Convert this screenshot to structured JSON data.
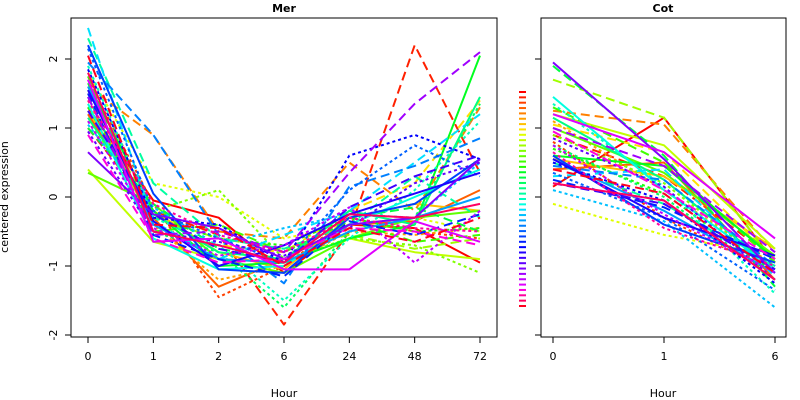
{
  "chart_data": [
    {
      "type": "line",
      "title": "Mer",
      "xlabel": "Hour",
      "ylabel": "centered expression",
      "categories": [
        "0",
        "1",
        "2",
        "6",
        "24",
        "48",
        "72"
      ],
      "ylim": [
        -2,
        2.5
      ],
      "yticks": [
        -2,
        -1,
        0,
        1,
        2
      ],
      "grid": false,
      "series": [
        {
          "color": "#ff0000",
          "dash": "solid",
          "values": [
            1.3,
            -0.05,
            -0.3,
            -1.1,
            -0.4,
            -0.45,
            -0.95
          ]
        },
        {
          "color": "#ff2000",
          "dash": "long",
          "values": [
            1.0,
            -0.2,
            -0.55,
            -1.85,
            -0.5,
            2.2,
            0.35
          ]
        },
        {
          "color": "#ff4000",
          "dash": "short",
          "values": [
            1.7,
            -0.1,
            -1.45,
            -1.0,
            -0.3,
            -0.5,
            -0.6
          ]
        },
        {
          "color": "#ff6000",
          "dash": "solid",
          "values": [
            1.2,
            -0.3,
            -1.3,
            -0.9,
            -0.4,
            -0.35,
            0.1
          ]
        },
        {
          "color": "#ff8000",
          "dash": "long",
          "values": [
            1.6,
            0.9,
            -0.5,
            -0.6,
            0.5,
            -0.2,
            1.3
          ]
        },
        {
          "color": "#ffa000",
          "dash": "short",
          "values": [
            1.4,
            -0.4,
            -1.2,
            -1.0,
            -0.5,
            -0.55,
            -0.45
          ]
        },
        {
          "color": "#ffc000",
          "dash": "solid",
          "values": [
            1.25,
            -0.2,
            -0.8,
            -1.05,
            -0.3,
            -0.1,
            -0.2
          ]
        },
        {
          "color": "#ffe000",
          "dash": "long",
          "values": [
            1.5,
            -0.5,
            -0.7,
            -0.8,
            -0.2,
            0.2,
            1.4
          ]
        },
        {
          "color": "#e0ff00",
          "dash": "short",
          "values": [
            1.8,
            0.2,
            0.0,
            -0.6,
            -0.4,
            -0.3,
            -0.5
          ]
        },
        {
          "color": "#c0ff00",
          "dash": "solid",
          "values": [
            0.4,
            -0.65,
            -0.9,
            -0.95,
            -0.6,
            -0.8,
            -0.9
          ]
        },
        {
          "color": "#a0ff00",
          "dash": "long",
          "values": [
            1.55,
            -0.3,
            -0.6,
            -0.75,
            -0.55,
            -0.75,
            -0.6
          ]
        },
        {
          "color": "#80ff00",
          "dash": "short",
          "values": [
            1.1,
            -0.2,
            0.1,
            -0.9,
            -0.6,
            -0.7,
            -1.1
          ]
        },
        {
          "color": "#60ff00",
          "dash": "solid",
          "values": [
            0.35,
            -0.1,
            -0.9,
            -1.1,
            -0.6,
            -0.3,
            -0.2
          ]
        },
        {
          "color": "#40ff00",
          "dash": "long",
          "values": [
            1.75,
            -0.5,
            -0.4,
            -0.8,
            -0.35,
            -0.65,
            -0.55
          ]
        },
        {
          "color": "#20ff00",
          "dash": "short",
          "values": [
            1.3,
            -0.3,
            -0.6,
            -0.7,
            -0.3,
            -0.5,
            -0.45
          ]
        },
        {
          "color": "#00ff20",
          "dash": "solid",
          "values": [
            1.65,
            -0.2,
            -1.0,
            -0.95,
            -0.6,
            -0.4,
            2.05
          ]
        },
        {
          "color": "#00ff40",
          "dash": "long",
          "values": [
            1.0,
            -0.1,
            -0.75,
            -0.9,
            -0.3,
            -0.15,
            -0.5
          ]
        },
        {
          "color": "#00ff60",
          "dash": "short",
          "values": [
            1.45,
            -0.5,
            -0.8,
            -1.6,
            -0.5,
            -0.3,
            1.35
          ]
        },
        {
          "color": "#00ff80",
          "dash": "solid",
          "values": [
            1.15,
            -0.25,
            -0.8,
            -0.9,
            -0.2,
            -0.4,
            1.45
          ]
        },
        {
          "color": "#00ffa0",
          "dash": "long",
          "values": [
            2.3,
            0.2,
            -0.6,
            -0.75,
            -0.4,
            0.3,
            -0.3
          ]
        },
        {
          "color": "#00ffc0",
          "dash": "short",
          "values": [
            1.9,
            -0.3,
            -0.7,
            -1.5,
            -0.6,
            0.1,
            1.1
          ]
        },
        {
          "color": "#00ffe0",
          "dash": "solid",
          "values": [
            1.35,
            -0.6,
            -1.05,
            -1.0,
            -0.4,
            0.0,
            0.4
          ]
        },
        {
          "color": "#00e0ff",
          "dash": "long",
          "values": [
            2.45,
            -0.35,
            -0.9,
            -0.55,
            -0.2,
            0.5,
            1.2
          ]
        },
        {
          "color": "#00c0ff",
          "dash": "short",
          "values": [
            1.05,
            -0.15,
            -0.7,
            -0.45,
            -0.25,
            -0.3,
            0.5
          ]
        },
        {
          "color": "#00a0ff",
          "dash": "solid",
          "values": [
            1.6,
            -0.4,
            -0.9,
            -0.95,
            -0.5,
            -0.3,
            0.0
          ]
        },
        {
          "color": "#0080ff",
          "dash": "long",
          "values": [
            1.95,
            0.9,
            -0.55,
            -1.25,
            0.15,
            0.45,
            0.85
          ]
        },
        {
          "color": "#0060ff",
          "dash": "short",
          "values": [
            2.15,
            -0.2,
            -0.6,
            -0.95,
            0.1,
            0.75,
            0.3
          ]
        },
        {
          "color": "#0040ff",
          "dash": "solid",
          "values": [
            2.2,
            0.05,
            -1.05,
            -1.1,
            -0.3,
            -0.1,
            0.55
          ]
        },
        {
          "color": "#0020ff",
          "dash": "long",
          "values": [
            1.5,
            -0.55,
            -0.9,
            -1.15,
            -0.35,
            -0.55,
            -0.25
          ]
        },
        {
          "color": "#0000ff",
          "dash": "short",
          "values": [
            1.85,
            -0.3,
            -0.4,
            -0.95,
            0.6,
            0.9,
            0.55
          ]
        },
        {
          "color": "#2000ff",
          "dash": "solid",
          "values": [
            1.55,
            -0.35,
            -1.0,
            -0.7,
            -0.25,
            0.05,
            0.35
          ]
        },
        {
          "color": "#4000ff",
          "dash": "long",
          "values": [
            1.25,
            -0.25,
            -0.75,
            -0.95,
            -0.15,
            0.3,
            0.6
          ]
        },
        {
          "color": "#6000ff",
          "dash": "short",
          "values": [
            0.95,
            -0.5,
            -0.65,
            -0.85,
            -0.45,
            0.2,
            0.5
          ]
        },
        {
          "color": "#8000ff",
          "dash": "solid",
          "values": [
            0.65,
            -0.25,
            -0.45,
            -0.9,
            -0.4,
            -0.3,
            0.55
          ]
        },
        {
          "color": "#a000ff",
          "dash": "long",
          "values": [
            1.45,
            -0.55,
            -0.5,
            -0.8,
            0.35,
            1.35,
            2.1
          ]
        },
        {
          "color": "#c000ff",
          "dash": "short",
          "values": [
            1.1,
            -0.45,
            -0.85,
            -0.7,
            -0.15,
            -0.95,
            -0.2
          ]
        },
        {
          "color": "#e000ff",
          "dash": "solid",
          "values": [
            1.7,
            -0.65,
            -0.6,
            -1.05,
            -1.05,
            -0.35,
            -0.65
          ]
        },
        {
          "color": "#ff00e0",
          "dash": "long",
          "values": [
            0.9,
            -0.6,
            -0.95,
            -0.9,
            -0.45,
            -0.5,
            -0.7
          ]
        },
        {
          "color": "#ff00a0",
          "dash": "short",
          "values": [
            1.4,
            -0.1,
            -0.55,
            -0.8,
            -0.3,
            -0.45,
            -0.5
          ]
        },
        {
          "color": "#ff0060",
          "dash": "solid",
          "values": [
            1.8,
            -0.5,
            -0.7,
            -0.95,
            -0.25,
            -0.3,
            -0.1
          ]
        },
        {
          "color": "#ff0020",
          "dash": "long",
          "values": [
            2.05,
            -0.4,
            -0.45,
            -1.0,
            -0.45,
            -0.65,
            -0.3
          ]
        }
      ]
    },
    {
      "type": "line",
      "title": "Cot",
      "xlabel": "Hour",
      "ylabel": "",
      "categories": [
        "0",
        "1",
        "6"
      ],
      "ylim": [
        -2,
        2.5
      ],
      "yticks": [
        -2,
        -1,
        0,
        1,
        2
      ],
      "grid": false,
      "series": [
        {
          "color": "#ff0000",
          "dash": "solid",
          "values": [
            0.15,
            1.15,
            -0.95
          ]
        },
        {
          "color": "#ff2000",
          "dash": "long",
          "values": [
            0.9,
            0.3,
            -0.9
          ]
        },
        {
          "color": "#ff4000",
          "dash": "short",
          "values": [
            0.8,
            -0.3,
            -1.1
          ]
        },
        {
          "color": "#ff6000",
          "dash": "solid",
          "values": [
            0.4,
            0.5,
            -1.2
          ]
        },
        {
          "color": "#ff8000",
          "dash": "long",
          "values": [
            1.25,
            1.05,
            -0.8
          ]
        },
        {
          "color": "#ffa000",
          "dash": "short",
          "values": [
            1.1,
            0.1,
            -1.0
          ]
        },
        {
          "color": "#ffc000",
          "dash": "solid",
          "values": [
            0.55,
            0.3,
            -0.75
          ]
        },
        {
          "color": "#ffe000",
          "dash": "long",
          "values": [
            1.05,
            0.65,
            -0.9
          ]
        },
        {
          "color": "#e0ff00",
          "dash": "short",
          "values": [
            -0.1,
            -0.55,
            -0.85
          ]
        },
        {
          "color": "#c0ff00",
          "dash": "solid",
          "values": [
            1.2,
            0.75,
            -0.75
          ]
        },
        {
          "color": "#a0ff00",
          "dash": "long",
          "values": [
            1.7,
            1.15,
            -0.95
          ]
        },
        {
          "color": "#80ff00",
          "dash": "short",
          "values": [
            0.9,
            0.2,
            -1.05
          ]
        },
        {
          "color": "#60ff00",
          "dash": "solid",
          "values": [
            1.0,
            0.35,
            -0.85
          ]
        },
        {
          "color": "#40ff00",
          "dash": "long",
          "values": [
            1.3,
            0.5,
            -0.95
          ]
        },
        {
          "color": "#20ff00",
          "dash": "short",
          "values": [
            0.7,
            0.05,
            -1.1
          ]
        },
        {
          "color": "#00ff20",
          "dash": "solid",
          "values": [
            0.6,
            0.45,
            -0.9
          ]
        },
        {
          "color": "#00ff40",
          "dash": "long",
          "values": [
            1.9,
            0.6,
            -1.3
          ]
        },
        {
          "color": "#00ff60",
          "dash": "short",
          "values": [
            0.75,
            0.0,
            -1.2
          ]
        },
        {
          "color": "#00ff80",
          "dash": "solid",
          "values": [
            1.15,
            0.25,
            -1.05
          ]
        },
        {
          "color": "#00ffa0",
          "dash": "long",
          "values": [
            0.5,
            -0.1,
            -1.0
          ]
        },
        {
          "color": "#00ffc0",
          "dash": "short",
          "values": [
            1.35,
            0.15,
            -1.4
          ]
        },
        {
          "color": "#00ffe0",
          "dash": "solid",
          "values": [
            1.45,
            0.1,
            -1.05
          ]
        },
        {
          "color": "#00e0ff",
          "dash": "long",
          "values": [
            0.3,
            0.4,
            -1.15
          ]
        },
        {
          "color": "#00c0ff",
          "dash": "short",
          "values": [
            0.1,
            -0.35,
            -1.6
          ]
        },
        {
          "color": "#00a0ff",
          "dash": "solid",
          "values": [
            0.55,
            -0.2,
            -1.1
          ]
        },
        {
          "color": "#0080ff",
          "dash": "long",
          "values": [
            0.45,
            0.25,
            -1.0
          ]
        },
        {
          "color": "#0060ff",
          "dash": "short",
          "values": [
            0.35,
            -0.3,
            -1.35
          ]
        },
        {
          "color": "#0040ff",
          "dash": "solid",
          "values": [
            0.6,
            -0.4,
            -0.95
          ]
        },
        {
          "color": "#0020ff",
          "dash": "long",
          "values": [
            0.25,
            -0.15,
            -0.9
          ]
        },
        {
          "color": "#0000ff",
          "dash": "short",
          "values": [
            0.5,
            -0.05,
            -1.25
          ]
        },
        {
          "color": "#2000ff",
          "dash": "solid",
          "values": [
            0.55,
            -0.3,
            -0.85
          ]
        },
        {
          "color": "#4000ff",
          "dash": "long",
          "values": [
            0.2,
            -0.1,
            -1.05
          ]
        },
        {
          "color": "#6000ff",
          "dash": "short",
          "values": [
            0.85,
            0.15,
            -1.2
          ]
        },
        {
          "color": "#8000ff",
          "dash": "solid",
          "values": [
            1.95,
            0.55,
            -1.1
          ]
        },
        {
          "color": "#a000ff",
          "dash": "long",
          "values": [
            1.0,
            0.45,
            -0.8
          ]
        },
        {
          "color": "#c000ff",
          "dash": "short",
          "values": [
            0.75,
            -0.25,
            -1.1
          ]
        },
        {
          "color": "#e000ff",
          "dash": "solid",
          "values": [
            1.2,
            0.65,
            -0.6
          ]
        },
        {
          "color": "#ff00e0",
          "dash": "long",
          "values": [
            0.95,
            0.1,
            -0.9
          ]
        },
        {
          "color": "#ff00a0",
          "dash": "short",
          "values": [
            0.65,
            -0.45,
            -1.0
          ]
        },
        {
          "color": "#ff0060",
          "dash": "solid",
          "values": [
            0.2,
            -0.05,
            -1.2
          ]
        },
        {
          "color": "#ff0020",
          "dash": "long",
          "values": [
            0.4,
            0.05,
            -1.1
          ]
        }
      ]
    }
  ]
}
